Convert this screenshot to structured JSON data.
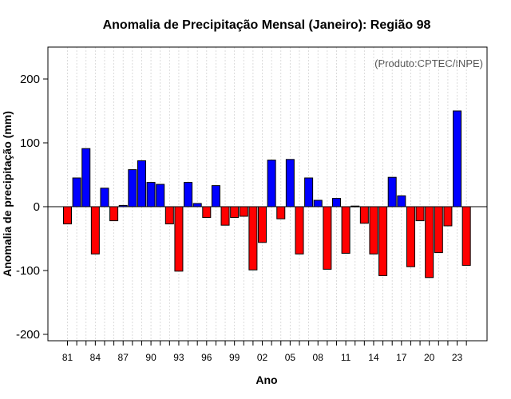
{
  "chart_data": {
    "type": "bar",
    "title": "Anomalia de Precipitação Mensal (Janeiro): Região 98",
    "xlabel": "Ano",
    "ylabel": "Anomalia de precipitação (mm)",
    "credit": "(Produto:CPTEC/INPE)",
    "ylim": [
      -210,
      250
    ],
    "yticks": [
      -200,
      -100,
      0,
      100,
      200
    ],
    "xtick_labels": [
      "81",
      "84",
      "87",
      "90",
      "93",
      "96",
      "99",
      "02",
      "05",
      "08",
      "11",
      "14",
      "17",
      "20",
      "23"
    ],
    "categories": [
      "1981",
      "1982",
      "1983",
      "1984",
      "1985",
      "1986",
      "1987",
      "1988",
      "1989",
      "1990",
      "1991",
      "1992",
      "1993",
      "1994",
      "1995",
      "1996",
      "1997",
      "1998",
      "1999",
      "2000",
      "2001",
      "2002",
      "2003",
      "2004",
      "2005",
      "2006",
      "2007",
      "2008",
      "2009",
      "2010",
      "2011",
      "2012",
      "2013",
      "2014",
      "2015",
      "2016",
      "2017",
      "2018",
      "2019",
      "2020",
      "2021",
      "2022",
      "2023",
      "2024"
    ],
    "values": [
      -27,
      45,
      91,
      -74,
      29,
      -22,
      2,
      58,
      72,
      38,
      35,
      -27,
      -101,
      38,
      5,
      -17,
      33,
      -29,
      -17,
      -15,
      -99,
      -56,
      73,
      -19,
      74,
      -74,
      45,
      10,
      -98,
      13,
      -73,
      1,
      -26,
      -74,
      -108,
      46,
      17,
      -94,
      -22,
      -111,
      -72,
      -30,
      150,
      -92
    ],
    "colors": {
      "positive": "#0000ff",
      "negative": "#ff0000",
      "grid": "#d3d3d3",
      "axis": "#000000"
    },
    "grid": true
  }
}
